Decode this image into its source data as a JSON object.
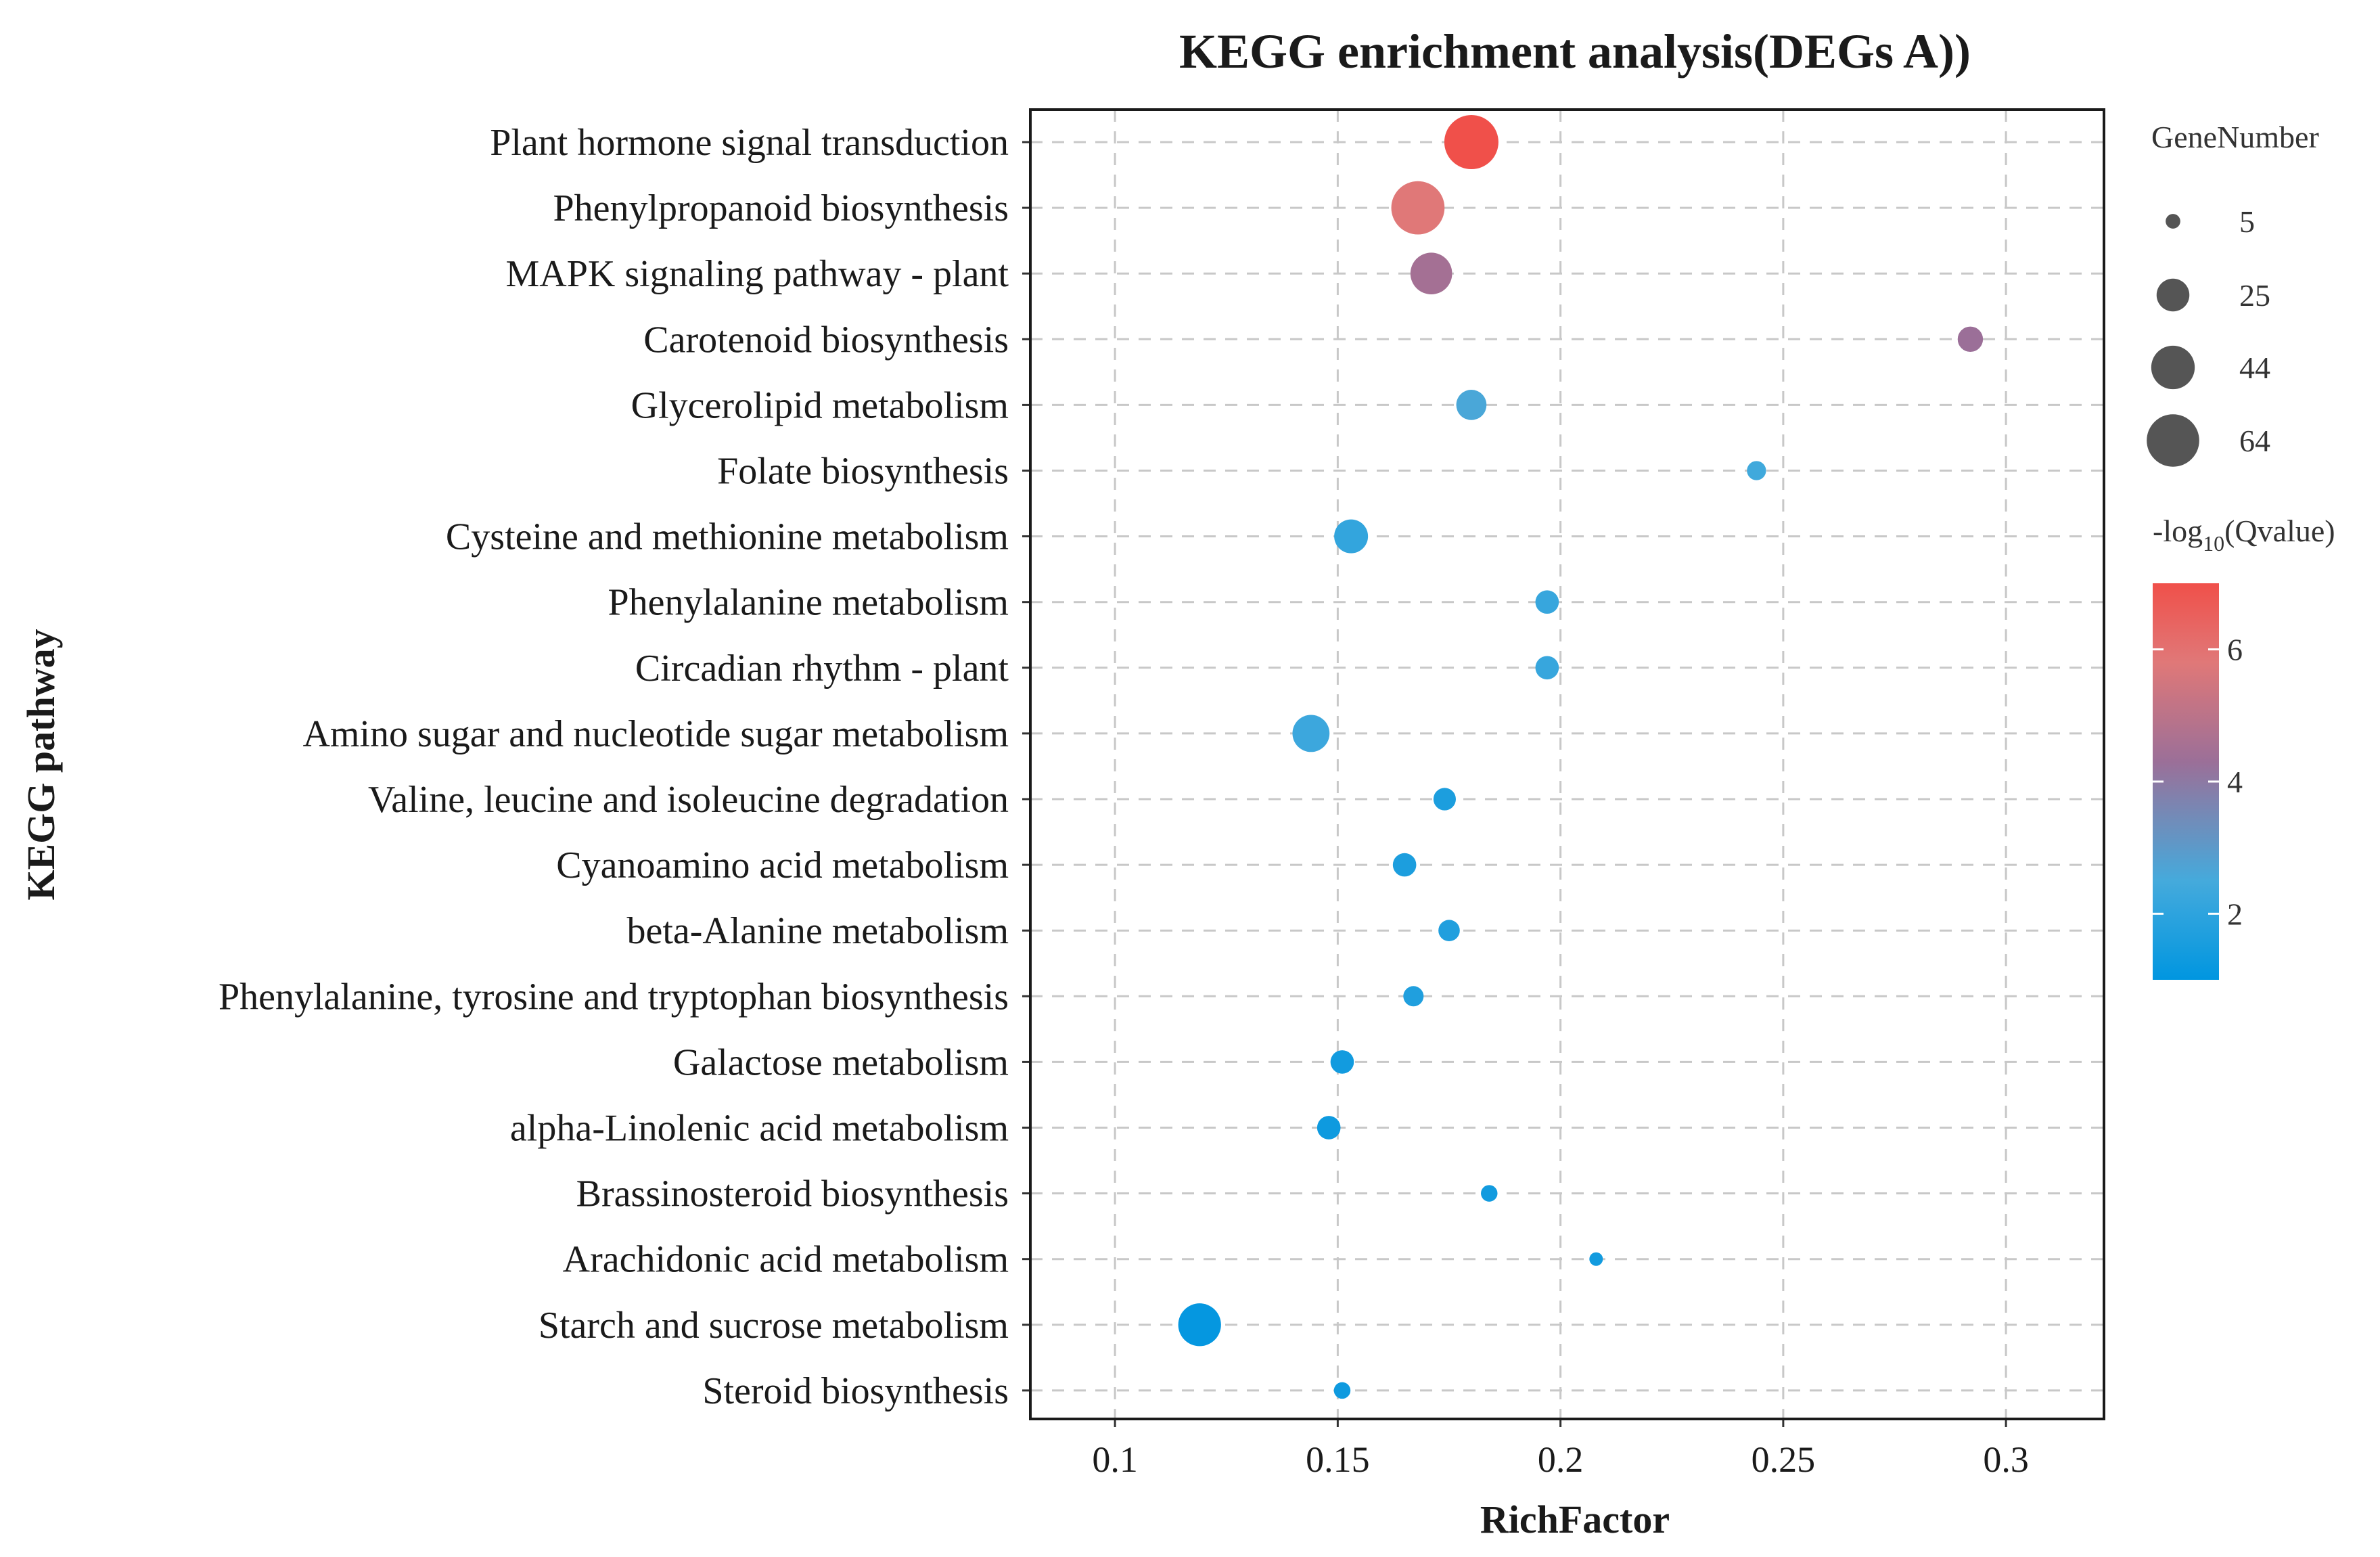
{
  "chart_data": {
    "type": "scatter",
    "title": "KEGG enrichment analysis(DEGs A))",
    "xlabel": "RichFactor",
    "ylabel": "KEGG pathway",
    "xlim": [
      0.081,
      0.322
    ],
    "xticks": [
      0.1,
      0.15,
      0.2,
      0.25,
      0.3
    ],
    "xtick_labels": [
      "0.1",
      "0.15",
      "0.2",
      "0.25",
      "0.3"
    ],
    "grid": true,
    "categories": [
      "Plant hormone signal transduction",
      "Phenylpropanoid biosynthesis",
      "MAPK signaling pathway - plant",
      "Carotenoid biosynthesis",
      "Glycerolipid metabolism",
      "Folate biosynthesis",
      "Cysteine and methionine metabolism",
      "Phenylalanine metabolism",
      "Circadian rhythm - plant",
      "Amino sugar and nucleotide sugar metabolism",
      "Valine, leucine and isoleucine degradation",
      "Cyanoamino acid metabolism",
      "beta-Alanine metabolism",
      "Phenylalanine, tyrosine and tryptophan biosynthesis",
      "Galactose metabolism",
      "alpha-Linolenic acid metabolism",
      "Brassinosteroid biosynthesis",
      "Arachidonic acid metabolism",
      "Starch and sucrose metabolism",
      "Steroid biosynthesis"
    ],
    "points": [
      {
        "pathway": "Plant hormone signal transduction",
        "rich_factor": 0.18,
        "gene_number": 64,
        "neg_log10_q": 7.0
      },
      {
        "pathway": "Phenylpropanoid biosynthesis",
        "rich_factor": 0.168,
        "gene_number": 62,
        "neg_log10_q": 5.8
      },
      {
        "pathway": "MAPK signaling pathway - plant",
        "rich_factor": 0.171,
        "gene_number": 38,
        "neg_log10_q": 4.5
      },
      {
        "pathway": "Carotenoid biosynthesis",
        "rich_factor": 0.292,
        "gene_number": 14,
        "neg_log10_q": 4.3
      },
      {
        "pathway": "Glycerolipid metabolism",
        "rich_factor": 0.18,
        "gene_number": 20,
        "neg_log10_q": 2.6
      },
      {
        "pathway": "Folate biosynthesis",
        "rich_factor": 0.244,
        "gene_number": 8,
        "neg_log10_q": 2.4
      },
      {
        "pathway": "Cysteine and methionine metabolism",
        "rich_factor": 0.153,
        "gene_number": 25,
        "neg_log10_q": 2.1
      },
      {
        "pathway": "Phenylalanine metabolism",
        "rich_factor": 0.197,
        "gene_number": 12,
        "neg_log10_q": 2.2
      },
      {
        "pathway": "Circadian rhythm - plant",
        "rich_factor": 0.197,
        "gene_number": 12,
        "neg_log10_q": 2.2
      },
      {
        "pathway": "Amino sugar and nucleotide sugar metabolism",
        "rich_factor": 0.144,
        "gene_number": 30,
        "neg_log10_q": 2.3
      },
      {
        "pathway": "Valine, leucine and isoleucine degradation",
        "rich_factor": 0.174,
        "gene_number": 11,
        "neg_log10_q": 1.6
      },
      {
        "pathway": "Cyanoamino acid metabolism",
        "rich_factor": 0.165,
        "gene_number": 12,
        "neg_log10_q": 1.6
      },
      {
        "pathway": "beta-Alanine metabolism",
        "rich_factor": 0.175,
        "gene_number": 10,
        "neg_log10_q": 1.7
      },
      {
        "pathway": "Phenylalanine, tyrosine and tryptophan biosynthesis",
        "rich_factor": 0.167,
        "gene_number": 9,
        "neg_log10_q": 1.7
      },
      {
        "pathway": "Galactose metabolism",
        "rich_factor": 0.151,
        "gene_number": 12,
        "neg_log10_q": 1.4
      },
      {
        "pathway": "alpha-Linolenic acid metabolism",
        "rich_factor": 0.148,
        "gene_number": 12,
        "neg_log10_q": 1.3
      },
      {
        "pathway": "Brassinosteroid biosynthesis",
        "rich_factor": 0.184,
        "gene_number": 6,
        "neg_log10_q": 1.4
      },
      {
        "pathway": "Arachidonic acid metabolism",
        "rich_factor": 0.208,
        "gene_number": 4,
        "neg_log10_q": 1.4
      },
      {
        "pathway": "Starch and sucrose metabolism",
        "rich_factor": 0.119,
        "gene_number": 40,
        "neg_log10_q": 1.1
      },
      {
        "pathway": "Steroid biosynthesis",
        "rich_factor": 0.151,
        "gene_number": 6,
        "neg_log10_q": 1.3
      }
    ],
    "size_legend": {
      "title": "GeneNumber",
      "values": [
        5,
        25,
        44,
        64
      ],
      "labels": [
        "5",
        "25",
        "44",
        "64"
      ]
    },
    "color_legend": {
      "title_main": "-log",
      "title_sub": "10",
      "title_tail": "(Qvalue)",
      "range": [
        1.0,
        7.0
      ],
      "ticks": [
        2,
        4,
        6
      ],
      "tick_labels": [
        "2",
        "4",
        "6"
      ],
      "colors": {
        "low": "#0096e0",
        "mid": "#9b6f98",
        "high": "#f0504a"
      }
    }
  }
}
